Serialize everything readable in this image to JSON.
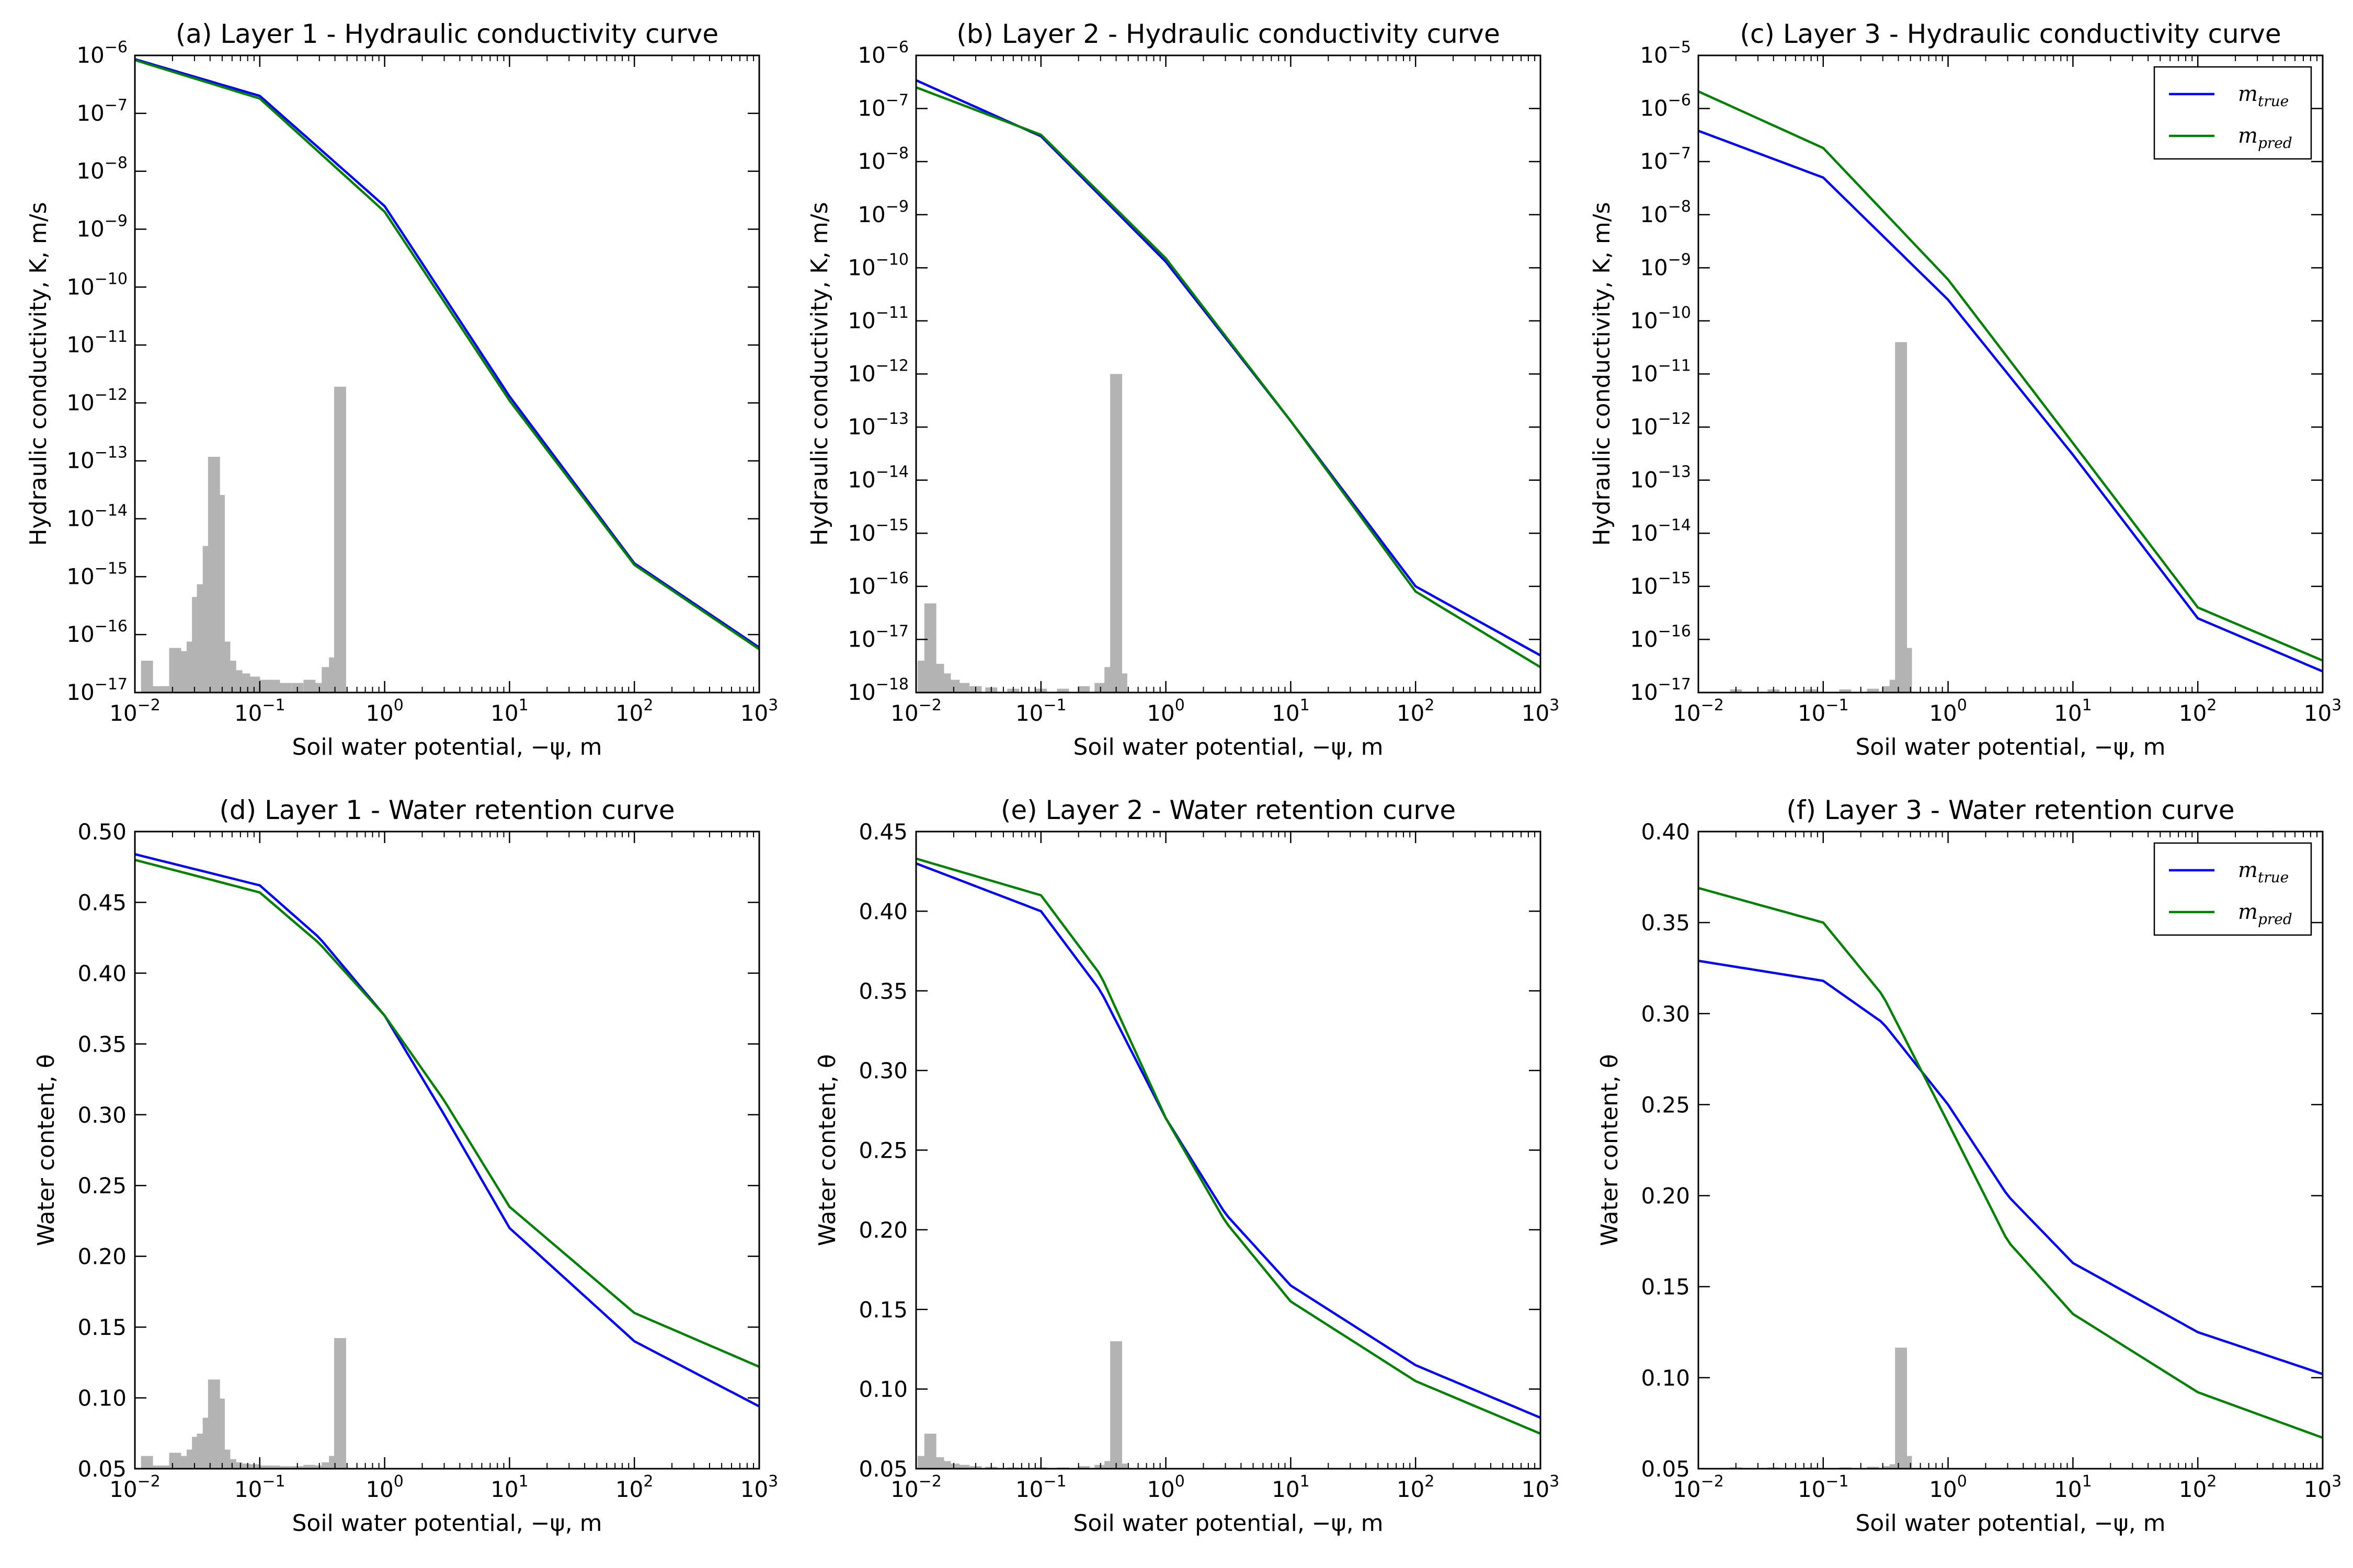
{
  "colors": {
    "true": "#0000ff",
    "pred": "#008000",
    "hist": "#b3b3b3",
    "axis": "#000000"
  },
  "chart_data": [
    {
      "type": "line",
      "title": "(a) Layer 1 - Hydraulic conductivity curve",
      "xlabel": "Soil water potential, −ψ, m",
      "ylabel": "Hydraulic conductivity, K, m/s",
      "xscale": "log",
      "yscale": "log",
      "xlim": [
        0.01,
        1000
      ],
      "ylim": [
        1e-17,
        1e-06
      ],
      "xtick_exps": [
        -2,
        -1,
        0,
        1,
        2,
        3
      ],
      "ytick_exps": [
        -17,
        -16,
        -15,
        -14,
        -13,
        -12,
        -11,
        -10,
        -9,
        -8,
        -7,
        -6
      ],
      "legend": "none",
      "series": [
        {
          "key": "true",
          "x": [
            0.01,
            0.1,
            1,
            10,
            100,
            1000
          ],
          "y": [
            8.6e-07,
            2e-07,
            2.5e-09,
            1.3e-12,
            1.7e-15,
            6e-17
          ]
        },
        {
          "key": "pred",
          "x": [
            0.01,
            0.1,
            1,
            10,
            100,
            1000
          ],
          "y": [
            8.3e-07,
            1.8e-07,
            2e-09,
            1.1e-12,
            1.6e-15,
            5.6e-17
          ]
        }
      ],
      "hist": [
        {
          "x": 0.0125,
          "h": 0.05
        },
        {
          "x": 0.015,
          "h": 0.01
        },
        {
          "x": 0.018,
          "h": 0.01
        },
        {
          "x": 0.021,
          "h": 0.07
        },
        {
          "x": 0.025,
          "h": 0.065
        },
        {
          "x": 0.029,
          "h": 0.08
        },
        {
          "x": 0.032,
          "h": 0.15
        },
        {
          "x": 0.035,
          "h": 0.17
        },
        {
          "x": 0.039,
          "h": 0.23
        },
        {
          "x": 0.043,
          "h": 0.37
        },
        {
          "x": 0.047,
          "h": 0.31
        },
        {
          "x": 0.052,
          "h": 0.08
        },
        {
          "x": 0.058,
          "h": 0.05
        },
        {
          "x": 0.065,
          "h": 0.035
        },
        {
          "x": 0.075,
          "h": 0.03
        },
        {
          "x": 0.09,
          "h": 0.025
        },
        {
          "x": 0.11,
          "h": 0.02
        },
        {
          "x": 0.13,
          "h": 0.02
        },
        {
          "x": 0.16,
          "h": 0.015
        },
        {
          "x": 0.2,
          "h": 0.015
        },
        {
          "x": 0.25,
          "h": 0.02
        },
        {
          "x": 0.3,
          "h": 0.015
        },
        {
          "x": 0.35,
          "h": 0.04
        },
        {
          "x": 0.4,
          "h": 0.055
        },
        {
          "x": 0.44,
          "h": 0.48
        }
      ]
    },
    {
      "type": "line",
      "title": "(b) Layer 2 - Hydraulic conductivity curve",
      "xlabel": "Soil water potential, −ψ, m",
      "ylabel": "Hydraulic conductivity, K, m/s",
      "xscale": "log",
      "yscale": "log",
      "xlim": [
        0.01,
        1000
      ],
      "ylim": [
        1e-18,
        1e-06
      ],
      "xtick_exps": [
        -2,
        -1,
        0,
        1,
        2,
        3
      ],
      "ytick_exps": [
        -18,
        -17,
        -16,
        -15,
        -14,
        -13,
        -12,
        -11,
        -10,
        -9,
        -8,
        -7,
        -6
      ],
      "legend": "none",
      "series": [
        {
          "key": "true",
          "x": [
            0.01,
            0.1,
            1,
            10,
            100,
            1000
          ],
          "y": [
            3.4e-07,
            3e-08,
            1.3e-10,
            1.3e-13,
            1e-16,
            5e-18
          ]
        },
        {
          "key": "pred",
          "x": [
            0.01,
            0.1,
            1,
            10,
            100,
            1000
          ],
          "y": [
            2.5e-07,
            3.2e-08,
            1.5e-10,
            1.3e-13,
            8e-17,
            3e-18
          ]
        }
      ],
      "hist": [
        {
          "x": 0.0115,
          "h": 0.05
        },
        {
          "x": 0.013,
          "h": 0.14
        },
        {
          "x": 0.015,
          "h": 0.045
        },
        {
          "x": 0.017,
          "h": 0.03
        },
        {
          "x": 0.02,
          "h": 0.02
        },
        {
          "x": 0.024,
          "h": 0.015
        },
        {
          "x": 0.03,
          "h": 0.01
        },
        {
          "x": 0.04,
          "h": 0.008
        },
        {
          "x": 0.06,
          "h": 0.006
        },
        {
          "x": 0.1,
          "h": 0.006
        },
        {
          "x": 0.15,
          "h": 0.006
        },
        {
          "x": 0.22,
          "h": 0.01
        },
        {
          "x": 0.3,
          "h": 0.015
        },
        {
          "x": 0.36,
          "h": 0.04
        },
        {
          "x": 0.4,
          "h": 0.5
        },
        {
          "x": 0.44,
          "h": 0.03
        }
      ]
    },
    {
      "type": "line",
      "title": "(c) Layer 3 - Hydraulic conductivity curve",
      "xlabel": "Soil water potential, −ψ, m",
      "ylabel": "Hydraulic conductivity, K, m/s",
      "xscale": "log",
      "yscale": "log",
      "xlim": [
        0.01,
        1000
      ],
      "ylim": [
        1e-17,
        1e-05
      ],
      "xtick_exps": [
        -2,
        -1,
        0,
        1,
        2,
        3
      ],
      "ytick_exps": [
        -17,
        -16,
        -15,
        -14,
        -13,
        -12,
        -11,
        -10,
        -9,
        -8,
        -7,
        -6,
        -5
      ],
      "legend": "upper right",
      "series": [
        {
          "key": "true",
          "x": [
            0.01,
            0.1,
            1,
            10,
            100,
            1000
          ],
          "y": [
            3.8e-07,
            5e-08,
            2.5e-10,
            3e-13,
            2.5e-16,
            2.5e-17
          ]
        },
        {
          "key": "pred",
          "x": [
            0.01,
            0.1,
            1,
            10,
            100,
            1000
          ],
          "y": [
            2.1e-06,
            1.8e-07,
            6e-10,
            5e-13,
            4e-16,
            4e-17
          ]
        }
      ],
      "hist": [
        {
          "x": 0.02,
          "h": 0.005
        },
        {
          "x": 0.04,
          "h": 0.005
        },
        {
          "x": 0.08,
          "h": 0.005
        },
        {
          "x": 0.15,
          "h": 0.005
        },
        {
          "x": 0.25,
          "h": 0.006
        },
        {
          "x": 0.33,
          "h": 0.01
        },
        {
          "x": 0.38,
          "h": 0.02
        },
        {
          "x": 0.42,
          "h": 0.55
        },
        {
          "x": 0.46,
          "h": 0.07
        }
      ]
    },
    {
      "type": "line",
      "title": "(d) Layer 1 - Water retention curve",
      "xlabel": "Soil water potential, −ψ, m",
      "ylabel": "Water content, θ",
      "xscale": "log",
      "yscale": "linear",
      "xlim": [
        0.01,
        1000
      ],
      "ylim": [
        0.05,
        0.5
      ],
      "xtick_exps": [
        -2,
        -1,
        0,
        1,
        2,
        3
      ],
      "yticks": [
        0.05,
        0.1,
        0.15,
        0.2,
        0.25,
        0.3,
        0.35,
        0.4,
        0.45,
        0.5
      ],
      "legend": "none",
      "series": [
        {
          "key": "true",
          "x": [
            0.01,
            0.1,
            0.3,
            1,
            3,
            10,
            100,
            1000
          ],
          "y": [
            0.484,
            0.462,
            0.425,
            0.37,
            0.3,
            0.22,
            0.14,
            0.094
          ]
        },
        {
          "key": "pred",
          "x": [
            0.01,
            0.1,
            0.3,
            1,
            3,
            10,
            100,
            1000
          ],
          "y": [
            0.48,
            0.457,
            0.421,
            0.37,
            0.31,
            0.235,
            0.16,
            0.122
          ]
        }
      ],
      "hist": [
        {
          "x": 0.0125,
          "h": 0.02
        },
        {
          "x": 0.015,
          "h": 0.005
        },
        {
          "x": 0.018,
          "h": 0.005
        },
        {
          "x": 0.021,
          "h": 0.025
        },
        {
          "x": 0.025,
          "h": 0.02
        },
        {
          "x": 0.029,
          "h": 0.03
        },
        {
          "x": 0.032,
          "h": 0.05
        },
        {
          "x": 0.035,
          "h": 0.055
        },
        {
          "x": 0.039,
          "h": 0.08
        },
        {
          "x": 0.043,
          "h": 0.14
        },
        {
          "x": 0.047,
          "h": 0.11
        },
        {
          "x": 0.052,
          "h": 0.03
        },
        {
          "x": 0.058,
          "h": 0.015
        },
        {
          "x": 0.065,
          "h": 0.01
        },
        {
          "x": 0.075,
          "h": 0.008
        },
        {
          "x": 0.09,
          "h": 0.007
        },
        {
          "x": 0.11,
          "h": 0.005
        },
        {
          "x": 0.13,
          "h": 0.005
        },
        {
          "x": 0.16,
          "h": 0.004
        },
        {
          "x": 0.2,
          "h": 0.004
        },
        {
          "x": 0.25,
          "h": 0.006
        },
        {
          "x": 0.3,
          "h": 0.005
        },
        {
          "x": 0.35,
          "h": 0.01
        },
        {
          "x": 0.4,
          "h": 0.02
        },
        {
          "x": 0.44,
          "h": 0.205
        }
      ]
    },
    {
      "type": "line",
      "title": "(e) Layer 2 - Water retention curve",
      "xlabel": "Soil water potential, −ψ, m",
      "ylabel": "Water content, θ",
      "xscale": "log",
      "yscale": "linear",
      "xlim": [
        0.01,
        1000
      ],
      "ylim": [
        0.05,
        0.45
      ],
      "xtick_exps": [
        -2,
        -1,
        0,
        1,
        2,
        3
      ],
      "yticks": [
        0.05,
        0.1,
        0.15,
        0.2,
        0.25,
        0.3,
        0.35,
        0.4,
        0.45
      ],
      "legend": "none",
      "series": [
        {
          "key": "true",
          "x": [
            0.01,
            0.1,
            0.3,
            1,
            3,
            10,
            100,
            1000
          ],
          "y": [
            0.43,
            0.4,
            0.35,
            0.27,
            0.21,
            0.165,
            0.115,
            0.082
          ]
        },
        {
          "key": "pred",
          "x": [
            0.01,
            0.1,
            0.3,
            1,
            3,
            10,
            100,
            1000
          ],
          "y": [
            0.433,
            0.41,
            0.36,
            0.27,
            0.205,
            0.155,
            0.105,
            0.072
          ]
        }
      ],
      "hist": [
        {
          "x": 0.0115,
          "h": 0.02
        },
        {
          "x": 0.013,
          "h": 0.055
        },
        {
          "x": 0.015,
          "h": 0.018
        },
        {
          "x": 0.017,
          "h": 0.012
        },
        {
          "x": 0.02,
          "h": 0.008
        },
        {
          "x": 0.024,
          "h": 0.006
        },
        {
          "x": 0.03,
          "h": 0.004
        },
        {
          "x": 0.04,
          "h": 0.003
        },
        {
          "x": 0.06,
          "h": 0.002
        },
        {
          "x": 0.1,
          "h": 0.002
        },
        {
          "x": 0.15,
          "h": 0.002
        },
        {
          "x": 0.22,
          "h": 0.004
        },
        {
          "x": 0.3,
          "h": 0.006
        },
        {
          "x": 0.36,
          "h": 0.012
        },
        {
          "x": 0.4,
          "h": 0.2
        },
        {
          "x": 0.44,
          "h": 0.008
        }
      ]
    },
    {
      "type": "line",
      "title": "(f) Layer 3 - Water retention curve",
      "xlabel": "Soil water potential, −ψ, m",
      "ylabel": "Water content, θ",
      "xscale": "log",
      "yscale": "linear",
      "xlim": [
        0.01,
        1000
      ],
      "ylim": [
        0.05,
        0.4
      ],
      "xtick_exps": [
        -2,
        -1,
        0,
        1,
        2,
        3
      ],
      "yticks": [
        0.05,
        0.1,
        0.15,
        0.2,
        0.25,
        0.3,
        0.35,
        0.4
      ],
      "legend": "upper right",
      "series": [
        {
          "key": "true",
          "x": [
            0.01,
            0.1,
            0.3,
            1,
            3,
            10,
            100,
            1000
          ],
          "y": [
            0.329,
            0.318,
            0.295,
            0.25,
            0.2,
            0.163,
            0.125,
            0.102
          ]
        },
        {
          "key": "pred",
          "x": [
            0.01,
            0.1,
            0.3,
            1,
            3,
            10,
            100,
            1000
          ],
          "y": [
            0.369,
            0.35,
            0.31,
            0.24,
            0.175,
            0.135,
            0.092,
            0.067
          ]
        }
      ],
      "hist": [
        {
          "x": 0.02,
          "h": 0.002
        },
        {
          "x": 0.04,
          "h": 0.002
        },
        {
          "x": 0.08,
          "h": 0.002
        },
        {
          "x": 0.15,
          "h": 0.002
        },
        {
          "x": 0.25,
          "h": 0.003
        },
        {
          "x": 0.33,
          "h": 0.004
        },
        {
          "x": 0.38,
          "h": 0.007
        },
        {
          "x": 0.42,
          "h": 0.19
        },
        {
          "x": 0.46,
          "h": 0.02
        }
      ]
    }
  ],
  "legend_labels": {
    "true": {
      "main": "m",
      "sub": "true"
    },
    "pred": {
      "main": "m",
      "sub": "pred"
    }
  }
}
